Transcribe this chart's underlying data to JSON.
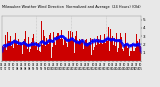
{
  "bg_color": "#e8e8e8",
  "plot_bg_color": "#e8e8e8",
  "grid_color": "#aaaaaa",
  "bar_color": "#cc0000",
  "line_color": "#0000ff",
  "n_points": 730,
  "seed": 42,
  "ylim": [
    0.0,
    5.5
  ],
  "y_ticks": [
    1,
    2,
    3,
    4,
    5
  ],
  "tick_fontsize": 3.0,
  "title_fontsize": 2.8,
  "n_grid_lines": 3,
  "title": "Milwaukee Weather Wind Direction  Normalized and Average  (24 Hours) (Old)"
}
